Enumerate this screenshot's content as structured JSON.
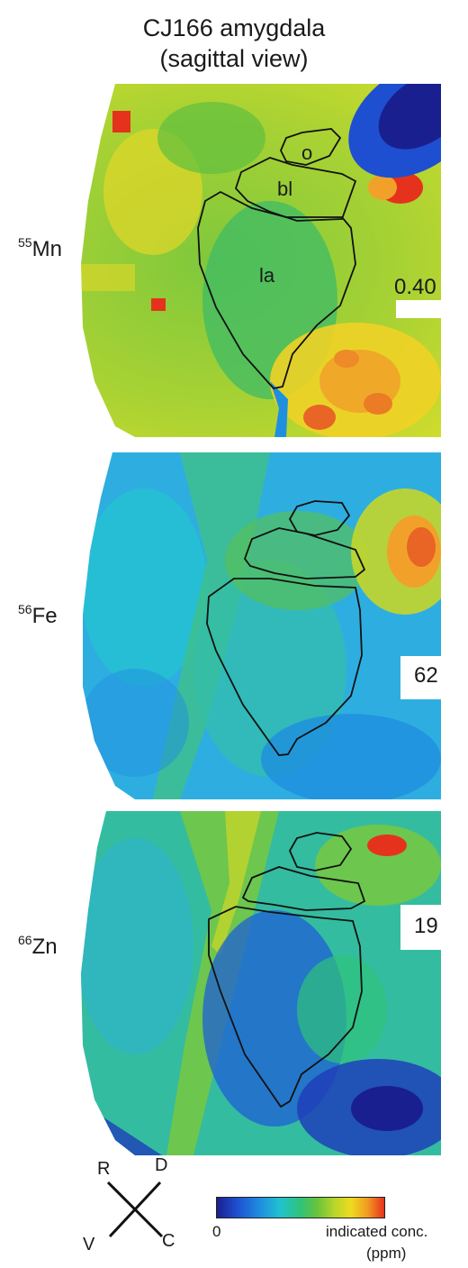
{
  "figure": {
    "title_line1": "CJ166 amygdala",
    "title_line2": "(sagittal view)"
  },
  "panels": [
    {
      "isotope_mass": "55",
      "element": "Mn",
      "max_label": "0.40",
      "regions": {
        "o": "o",
        "bl": "bl",
        "la": "la"
      }
    },
    {
      "isotope_mass": "56",
      "element": "Fe",
      "max_label": "62"
    },
    {
      "isotope_mass": "66",
      "element": "Zn",
      "max_label": "19"
    }
  ],
  "orientation": {
    "r": "R",
    "d": "D",
    "v": "V",
    "c": "C"
  },
  "colorbar": {
    "min_label": "0",
    "max_label": "indicated conc.",
    "unit": "(ppm)",
    "colors": [
      "#1a1f8f",
      "#1f8fe0",
      "#21c2cf",
      "#2fc37a",
      "#68c33b",
      "#b7d52a",
      "#eddc1f",
      "#f29a22",
      "#e5321c"
    ]
  }
}
